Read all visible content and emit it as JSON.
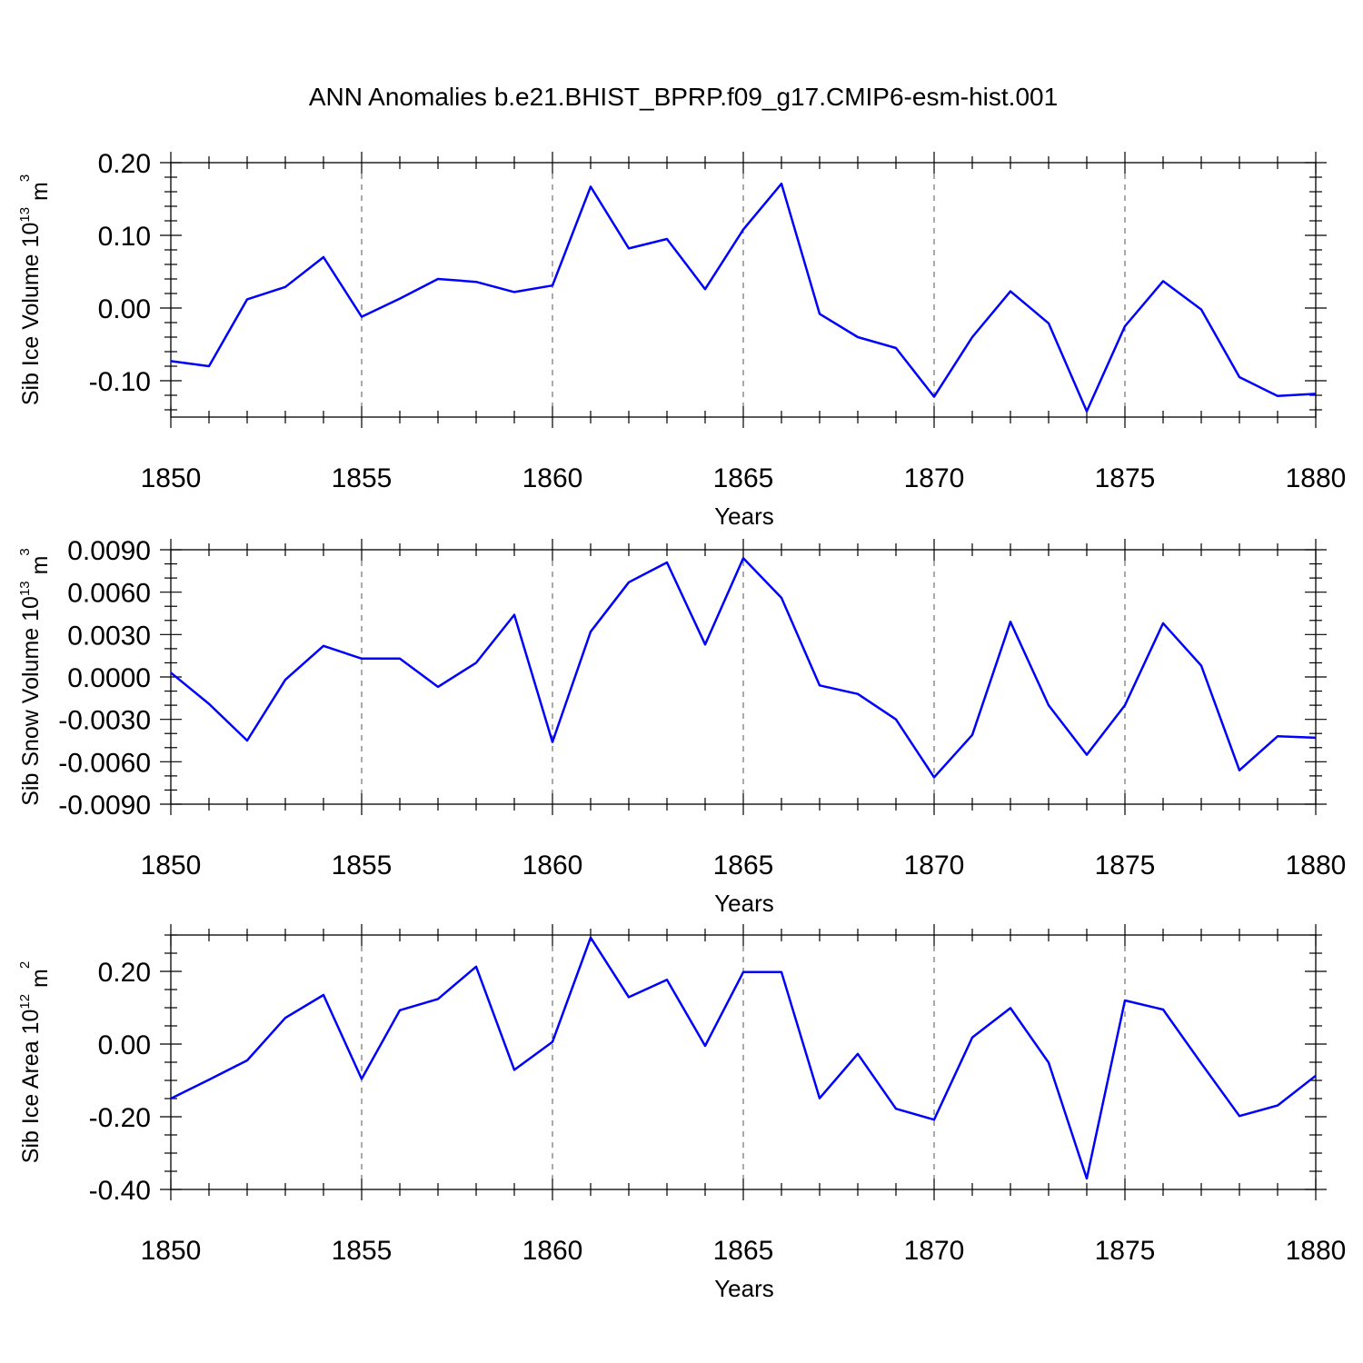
{
  "figure": {
    "title": "ANN Anomalies b.e21.BHIST_BPRP.f09_g17.CMIP6-esm-hist.001"
  },
  "chart_data": [
    {
      "type": "line",
      "title": "",
      "xlabel": "Years",
      "ylabel": "Sib Ice Volume",
      "ylabel_unit_base": "10",
      "ylabel_unit_exp": "13",
      "ylabel_unit_tail": " m",
      "ylabel_unit_tail_exp": "3",
      "xlim": [
        1850,
        1880
      ],
      "ylim": [
        -0.15,
        0.2
      ],
      "x_ticks": [
        1850,
        1855,
        1860,
        1865,
        1870,
        1875,
        1880
      ],
      "x_tick_labels": [
        "1850",
        "1855",
        "1860",
        "1865",
        "1870",
        "1875",
        "1880"
      ],
      "y_ticks": [
        -0.1,
        0.0,
        0.1,
        0.2
      ],
      "y_tick_labels": [
        "-0.10",
        "0.00",
        "0.10",
        "0.20"
      ],
      "y_minor_step": 0.02,
      "grid": "vertical-dashed-at-major-x",
      "color": "#0000ff",
      "x": [
        1850,
        1851,
        1852,
        1853,
        1854,
        1855,
        1856,
        1857,
        1858,
        1859,
        1860,
        1861,
        1862,
        1863,
        1864,
        1865,
        1866,
        1867,
        1868,
        1869,
        1870,
        1871,
        1872,
        1873,
        1874,
        1875,
        1876,
        1877,
        1878,
        1879,
        1880
      ],
      "values": [
        -0.073,
        -0.08,
        0.012,
        0.029,
        0.07,
        -0.012,
        0.013,
        0.04,
        0.036,
        0.022,
        0.031,
        0.167,
        0.082,
        0.095,
        0.026,
        0.108,
        0.171,
        -0.008,
        -0.04,
        -0.055,
        -0.122,
        -0.04,
        0.023,
        -0.021,
        -0.142,
        -0.025,
        0.037,
        -0.002,
        -0.095,
        -0.121,
        -0.118
      ]
    },
    {
      "type": "line",
      "title": "",
      "xlabel": "Years",
      "ylabel": "Sib Snow Volume",
      "ylabel_unit_base": "10",
      "ylabel_unit_exp": "13",
      "ylabel_unit_tail": " m",
      "ylabel_unit_tail_exp": "3",
      "xlim": [
        1850,
        1880
      ],
      "ylim": [
        -0.009,
        0.009
      ],
      "x_ticks": [
        1850,
        1855,
        1860,
        1865,
        1870,
        1875,
        1880
      ],
      "x_tick_labels": [
        "1850",
        "1855",
        "1860",
        "1865",
        "1870",
        "1875",
        "1880"
      ],
      "y_ticks": [
        -0.009,
        -0.006,
        -0.003,
        0.0,
        0.003,
        0.006,
        0.009
      ],
      "y_tick_labels": [
        "-0.0090",
        "-0.0060",
        "-0.0030",
        "0.0000",
        "0.0030",
        "0.0060",
        "0.0090"
      ],
      "y_minor_step": 0.001,
      "grid": "vertical-dashed-at-major-x",
      "color": "#0000ff",
      "x": [
        1850,
        1851,
        1852,
        1853,
        1854,
        1855,
        1856,
        1857,
        1858,
        1859,
        1860,
        1861,
        1862,
        1863,
        1864,
        1865,
        1866,
        1867,
        1868,
        1869,
        1870,
        1871,
        1872,
        1873,
        1874,
        1875,
        1876,
        1877,
        1878,
        1879,
        1880
      ],
      "values": [
        0.0003,
        -0.0019,
        -0.0045,
        -0.0002,
        0.0022,
        0.0013,
        0.0013,
        -0.0007,
        0.001,
        0.0044,
        -0.0046,
        0.0032,
        0.0067,
        0.0081,
        0.0023,
        0.0084,
        0.0056,
        -0.0006,
        -0.0012,
        -0.003,
        -0.0071,
        -0.0041,
        0.0039,
        -0.002,
        -0.0055,
        -0.002,
        0.0038,
        0.0008,
        -0.0066,
        -0.0042,
        -0.0043
      ]
    },
    {
      "type": "line",
      "title": "",
      "xlabel": "Years",
      "ylabel": "Sib Ice Area",
      "ylabel_unit_base": "10",
      "ylabel_unit_exp": "12",
      "ylabel_unit_tail": " m",
      "ylabel_unit_tail_exp": "2",
      "xlim": [
        1850,
        1880
      ],
      "ylim": [
        -0.4,
        0.3
      ],
      "x_ticks": [
        1850,
        1855,
        1860,
        1865,
        1870,
        1875,
        1880
      ],
      "x_tick_labels": [
        "1850",
        "1855",
        "1860",
        "1865",
        "1870",
        "1875",
        "1880"
      ],
      "y_ticks": [
        -0.4,
        -0.2,
        0.0,
        0.2
      ],
      "y_tick_labels": [
        "-0.40",
        "-0.20",
        "0.00",
        "0.20"
      ],
      "y_minor_step": 0.05,
      "grid": "vertical-dashed-at-major-x",
      "color": "#0000ff",
      "x": [
        1850,
        1851,
        1852,
        1853,
        1854,
        1855,
        1856,
        1857,
        1858,
        1859,
        1860,
        1861,
        1862,
        1863,
        1864,
        1865,
        1866,
        1867,
        1868,
        1869,
        1870,
        1871,
        1872,
        1873,
        1874,
        1875,
        1876,
        1877,
        1878,
        1879,
        1880
      ],
      "values": [
        -0.15,
        -0.098,
        -0.045,
        0.072,
        0.135,
        -0.096,
        0.093,
        0.124,
        0.213,
        -0.071,
        0.006,
        0.293,
        0.129,
        0.177,
        -0.005,
        0.198,
        0.198,
        -0.149,
        -0.027,
        -0.178,
        -0.208,
        0.018,
        0.099,
        -0.051,
        -0.37,
        0.12,
        0.095,
        -0.053,
        -0.198,
        -0.169,
        -0.087
      ]
    }
  ]
}
